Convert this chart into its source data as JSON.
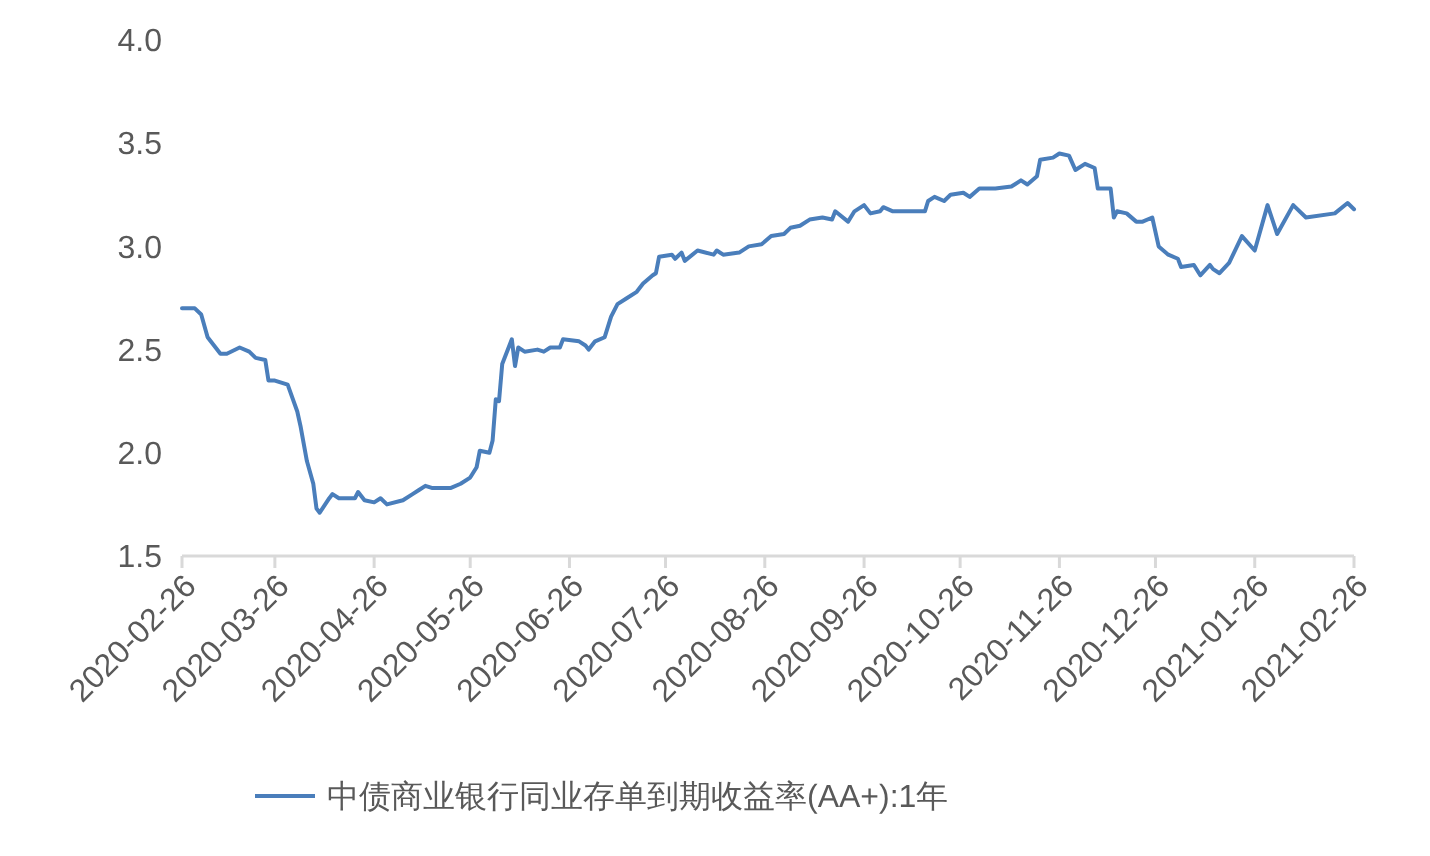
{
  "chart_data": {
    "type": "line",
    "legend": "bottom",
    "grid": false,
    "x": [
      "2020-02-26",
      "2020-03-01",
      "2020-03-03",
      "2020-03-05",
      "2020-03-09",
      "2020-03-11",
      "2020-03-15",
      "2020-03-18",
      "2020-03-20",
      "2020-03-23",
      "2020-03-24",
      "2020-03-26",
      "2020-03-30",
      "2020-04-02",
      "2020-04-03",
      "2020-04-05",
      "2020-04-07",
      "2020-04-08",
      "2020-04-09",
      "2020-04-12",
      "2020-04-13",
      "2020-04-15",
      "2020-04-20",
      "2020-04-21",
      "2020-04-23",
      "2020-04-26",
      "2020-04-28",
      "2020-04-30",
      "2020-05-05",
      "2020-05-08",
      "2020-05-10",
      "2020-05-12",
      "2020-05-14",
      "2020-05-20",
      "2020-05-23",
      "2020-05-26",
      "2020-05-28",
      "2020-05-29",
      "2020-06-01",
      "2020-06-02",
      "2020-06-03",
      "2020-06-04",
      "2020-06-05",
      "2020-06-08",
      "2020-06-09",
      "2020-06-10",
      "2020-06-12",
      "2020-06-16",
      "2020-06-18",
      "2020-06-20",
      "2020-06-23",
      "2020-06-24",
      "2020-06-29",
      "2020-07-01",
      "2020-07-02",
      "2020-07-04",
      "2020-07-07",
      "2020-07-09",
      "2020-07-11",
      "2020-07-14",
      "2020-07-17",
      "2020-07-19",
      "2020-07-22",
      "2020-07-23",
      "2020-07-24",
      "2020-07-28",
      "2020-07-29",
      "2020-07-31",
      "2020-08-01",
      "2020-08-05",
      "2020-08-10",
      "2020-08-11",
      "2020-08-13",
      "2020-08-18",
      "2020-08-21",
      "2020-08-25",
      "2020-08-28",
      "2020-09-01",
      "2020-09-03",
      "2020-09-06",
      "2020-09-09",
      "2020-09-13",
      "2020-09-16",
      "2020-09-17",
      "2020-09-21",
      "2020-09-23",
      "2020-09-26",
      "2020-09-28",
      "2020-10-01",
      "2020-10-02",
      "2020-10-05",
      "2020-10-15",
      "2020-10-16",
      "2020-10-18",
      "2020-10-21",
      "2020-10-23",
      "2020-10-27",
      "2020-10-29",
      "2020-11-01",
      "2020-11-06",
      "2020-11-11",
      "2020-11-14",
      "2020-11-16",
      "2020-11-19",
      "2020-11-20",
      "2020-11-24",
      "2020-11-26",
      "2020-11-29",
      "2020-12-01",
      "2020-12-04",
      "2020-12-07",
      "2020-12-08",
      "2020-12-12",
      "2020-12-13",
      "2020-12-14",
      "2020-12-17",
      "2020-12-20",
      "2020-12-22",
      "2020-12-25",
      "2020-12-27",
      "2020-12-30",
      "2021-01-02",
      "2021-01-03",
      "2021-01-07",
      "2021-01-09",
      "2021-01-12",
      "2021-01-13",
      "2021-01-15",
      "2021-01-18",
      "2021-01-22",
      "2021-01-26",
      "2021-01-30",
      "2021-02-02",
      "2021-02-07",
      "2021-02-11",
      "2021-02-20",
      "2021-02-24",
      "2021-02-26"
    ],
    "series": [
      {
        "name": "中债商业银行同业存单到期收益率(AA+):1年",
        "color": "#4a7ebb",
        "values": [
          2.7,
          2.7,
          2.67,
          2.56,
          2.48,
          2.48,
          2.51,
          2.49,
          2.46,
          2.45,
          2.35,
          2.35,
          2.33,
          2.2,
          2.13,
          1.96,
          1.85,
          1.73,
          1.71,
          1.78,
          1.8,
          1.78,
          1.78,
          1.81,
          1.77,
          1.76,
          1.78,
          1.75,
          1.77,
          1.8,
          1.82,
          1.84,
          1.83,
          1.83,
          1.85,
          1.88,
          1.93,
          2.01,
          2.0,
          2.06,
          2.26,
          2.25,
          2.43,
          2.55,
          2.42,
          2.51,
          2.49,
          2.5,
          2.49,
          2.51,
          2.51,
          2.55,
          2.54,
          2.52,
          2.5,
          2.54,
          2.56,
          2.66,
          2.72,
          2.75,
          2.78,
          2.82,
          2.86,
          2.87,
          2.95,
          2.96,
          2.94,
          2.97,
          2.93,
          2.98,
          2.96,
          2.98,
          2.96,
          2.97,
          3.0,
          3.01,
          3.05,
          3.06,
          3.09,
          3.1,
          3.13,
          3.14,
          3.13,
          3.17,
          3.12,
          3.17,
          3.2,
          3.16,
          3.17,
          3.19,
          3.17,
          3.17,
          3.22,
          3.24,
          3.22,
          3.25,
          3.26,
          3.24,
          3.28,
          3.28,
          3.29,
          3.32,
          3.3,
          3.34,
          3.42,
          3.43,
          3.45,
          3.44,
          3.37,
          3.4,
          3.38,
          3.28,
          3.28,
          3.14,
          3.17,
          3.16,
          3.12,
          3.12,
          3.14,
          3.0,
          2.96,
          2.94,
          2.9,
          2.91,
          2.86,
          2.91,
          2.89,
          2.87,
          2.92,
          3.05,
          2.98,
          3.2,
          3.06,
          3.2,
          3.14,
          3.16,
          3.21,
          3.18
        ]
      }
    ],
    "xlim": [
      "2020-02-26",
      "2021-02-26"
    ],
    "xticks": [
      "2020-02-26",
      "2020-03-26",
      "2020-04-26",
      "2020-05-26",
      "2020-06-26",
      "2020-07-26",
      "2020-08-26",
      "2020-09-26",
      "2020-10-26",
      "2020-11-26",
      "2020-12-26",
      "2021-01-26",
      "2021-02-26"
    ],
    "ylim": [
      1.5,
      4.0
    ],
    "yticks": [
      {
        "value": 1.5,
        "label": "1.5"
      },
      {
        "value": 2,
        "label": "2.0"
      },
      {
        "value": 2.5,
        "label": "2.5"
      },
      {
        "value": 3,
        "label": "3.0"
      },
      {
        "value": 3.5,
        "label": "3.5"
      },
      {
        "value": 4,
        "label": "4.0"
      }
    ]
  }
}
